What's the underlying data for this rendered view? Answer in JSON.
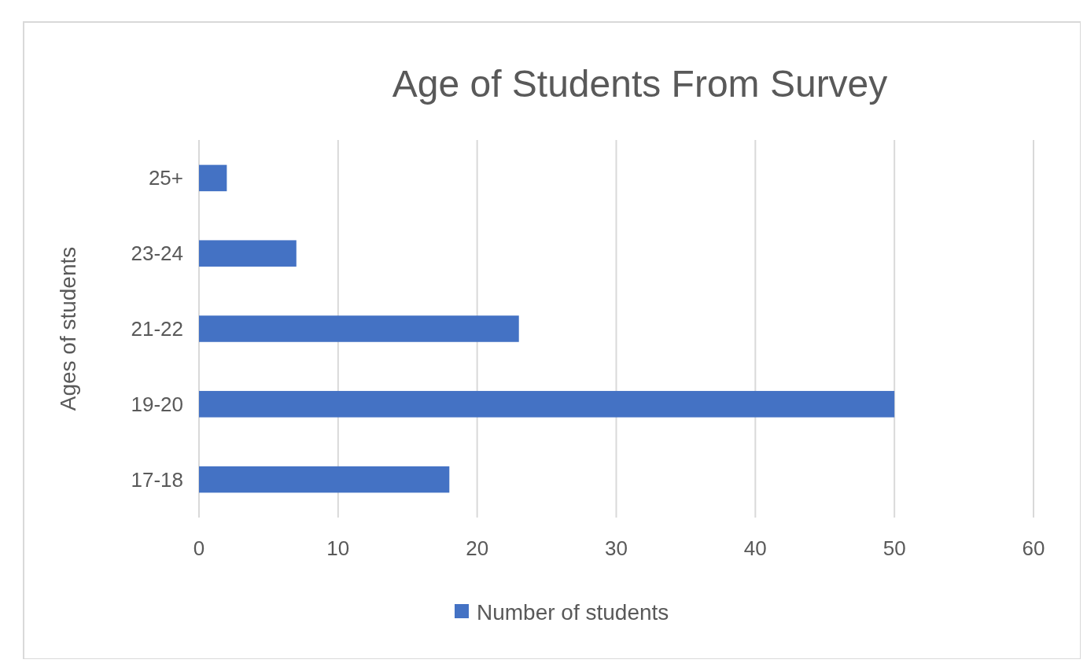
{
  "chart_data": {
    "type": "bar",
    "orientation": "horizontal",
    "title": "Age of Students From Survey",
    "ylabel": "Ages of students",
    "categories": [
      "25+",
      "23-24",
      "21-22",
      "19-20",
      "17-18"
    ],
    "series": [
      {
        "name": "Number of students",
        "color": "#4472c4",
        "values": [
          2,
          7,
          23,
          50,
          18
        ]
      }
    ],
    "xlim": [
      0,
      60
    ],
    "xticks": [
      0,
      10,
      20,
      30,
      40,
      50,
      60
    ],
    "grid": "x",
    "legend": "bottom"
  }
}
